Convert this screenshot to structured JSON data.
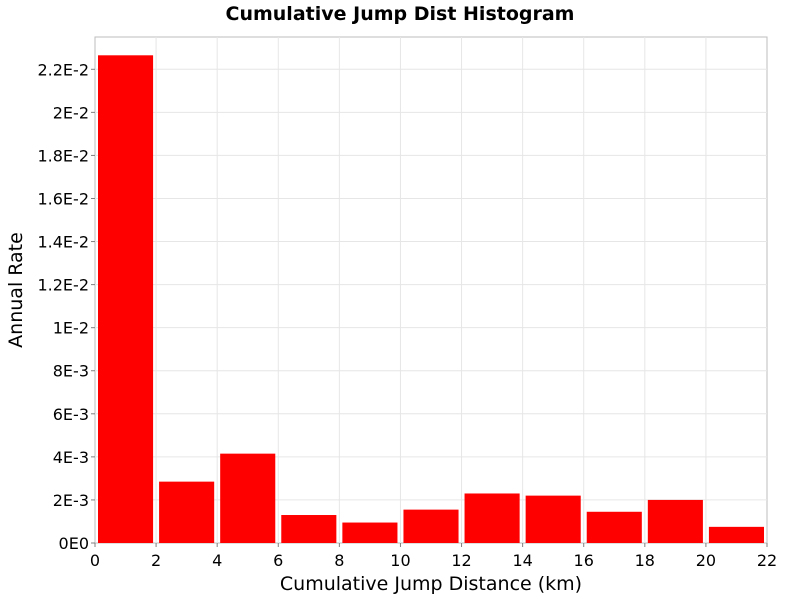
{
  "chart_data": {
    "type": "bar",
    "title": "Cumulative Jump Dist Histogram",
    "xlabel": "Cumulative Jump Distance (km)",
    "ylabel": "Annual Rate",
    "xlim": [
      0,
      22
    ],
    "ylim": [
      0,
      0.0235
    ],
    "x_ticks": [
      0,
      2,
      4,
      6,
      8,
      10,
      12,
      14,
      16,
      18,
      20,
      22
    ],
    "x_tick_labels": [
      "0",
      "2",
      "4",
      "6",
      "8",
      "10",
      "12",
      "14",
      "16",
      "18",
      "20",
      "22"
    ],
    "y_ticks": [
      0,
      0.002,
      0.004,
      0.006,
      0.008,
      0.01,
      0.012,
      0.014,
      0.016,
      0.018,
      0.02,
      0.022
    ],
    "y_tick_labels": [
      "0E0",
      "2E-3",
      "4E-3",
      "6E-3",
      "8E-3",
      "1E-2",
      "1.2E-2",
      "1.4E-2",
      "1.6E-2",
      "1.8E-2",
      "2E-2",
      "2.2E-2"
    ],
    "bin_width": 2,
    "bars": [
      {
        "x": 1,
        "value": 0.02265
      },
      {
        "x": 3,
        "value": 0.00285
      },
      {
        "x": 5,
        "value": 0.00415
      },
      {
        "x": 7,
        "value": 0.0013
      },
      {
        "x": 9,
        "value": 0.00095
      },
      {
        "x": 11,
        "value": 0.00155
      },
      {
        "x": 13,
        "value": 0.0023
      },
      {
        "x": 15,
        "value": 0.0022
      },
      {
        "x": 17,
        "value": 0.00145
      },
      {
        "x": 19,
        "value": 0.002
      },
      {
        "x": 21,
        "value": 0.00075
      }
    ],
    "bar_color": "#ff0000",
    "grid": true
  }
}
